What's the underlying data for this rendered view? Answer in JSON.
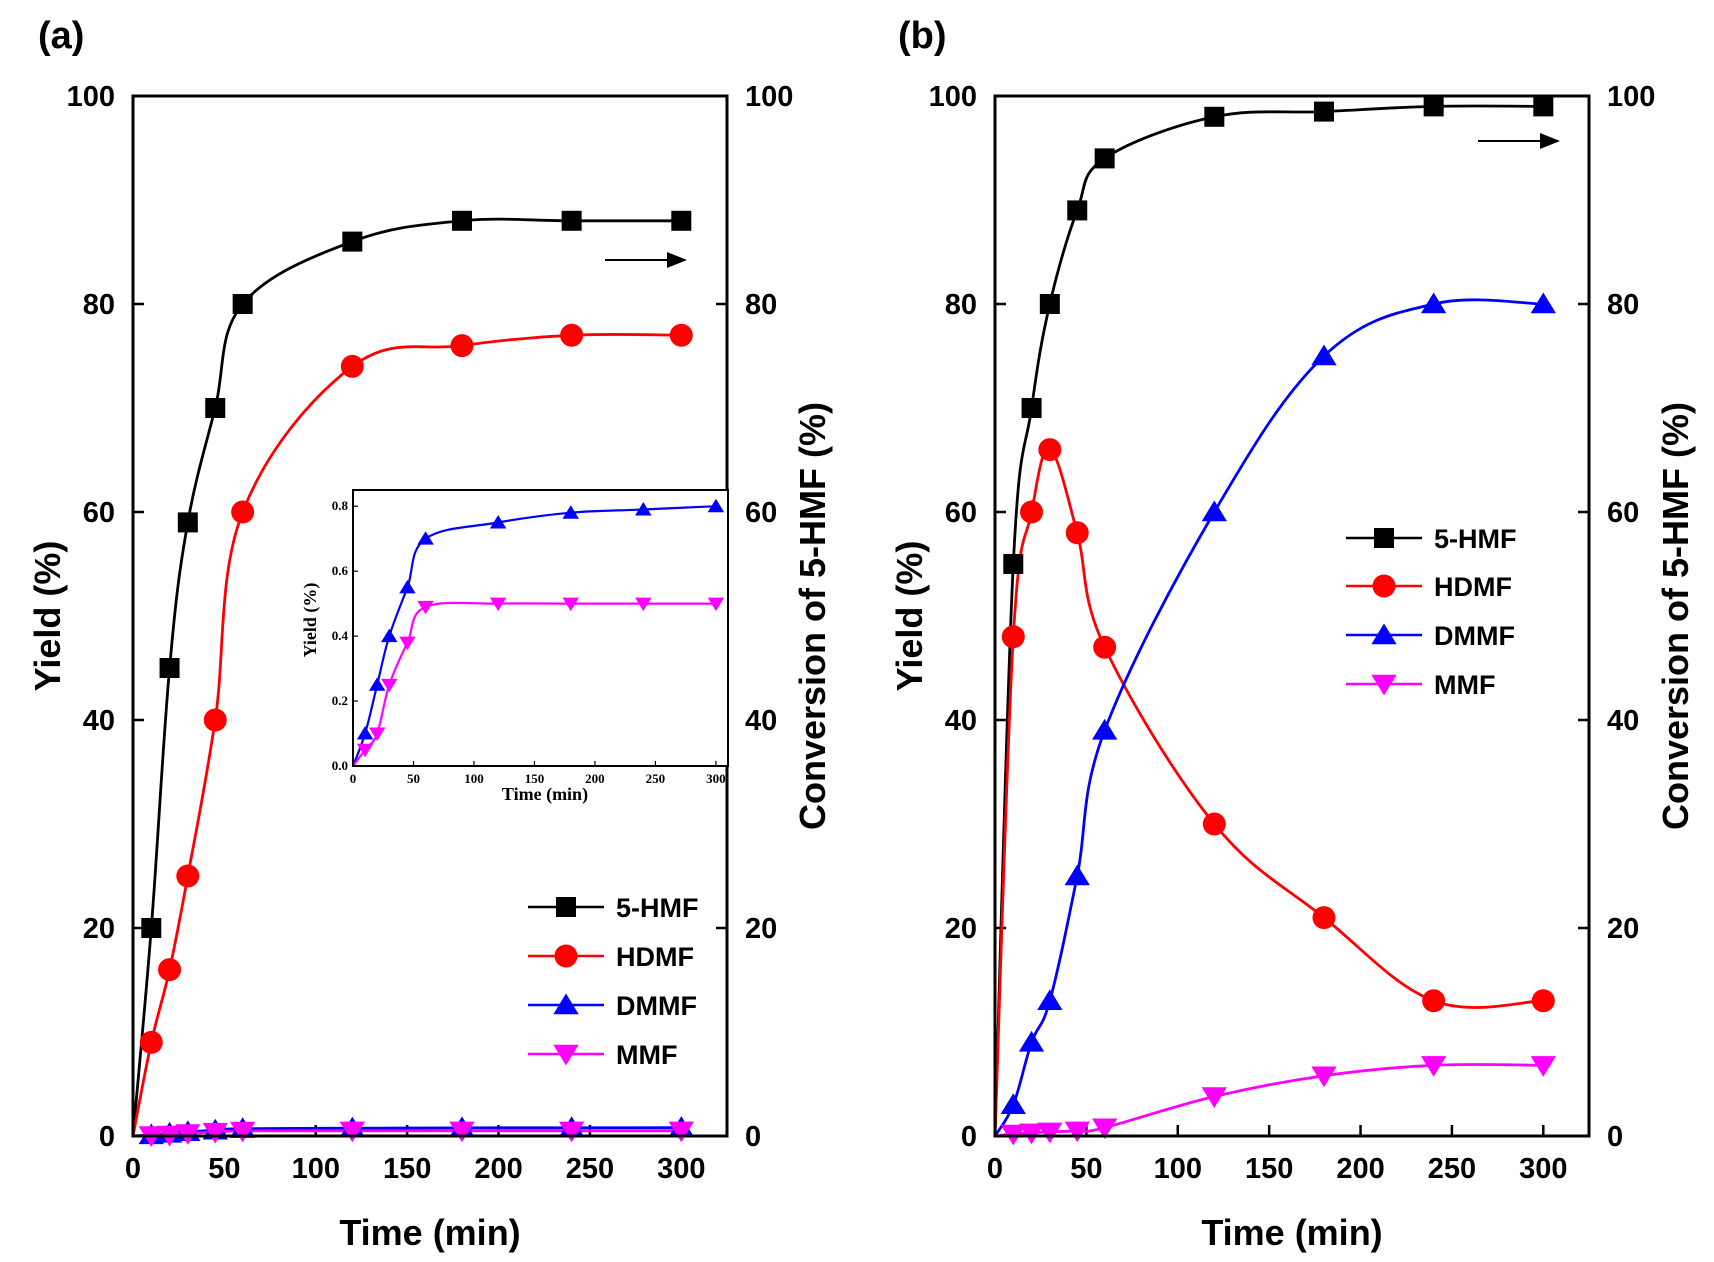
{
  "colors": {
    "5-HMF": "#000000",
    "HDMF": "#ff0000",
    "DMMF": "#0000ff",
    "MMF": "#ff00ff"
  },
  "chart_data": [
    {
      "panel": "(a)",
      "type": "line",
      "xlabel": "Time (min)",
      "ylabel": "Yield (%)",
      "y2label": "Conversion of 5-HMF (%)",
      "xlim": [
        0,
        325
      ],
      "ylim": [
        0,
        100
      ],
      "y2lim": [
        0,
        100
      ],
      "xticks": [
        "0",
        "50",
        "100",
        "150",
        "200",
        "250",
        "300"
      ],
      "yticks": [
        "0",
        "20",
        "40",
        "60",
        "80",
        "100"
      ],
      "y2ticks": [
        "0",
        "20",
        "40",
        "60",
        "80",
        "100"
      ],
      "legend_position": "lower-right",
      "arrow_annotation": "points to right axis (5-HMF conversion)",
      "series": [
        {
          "name": "5-HMF",
          "marker": "square",
          "axis": "right",
          "x": [
            10,
            20,
            30,
            45,
            60,
            120,
            180,
            240,
            300
          ],
          "values": [
            20,
            45,
            59,
            70,
            80,
            86,
            88,
            88,
            88
          ]
        },
        {
          "name": "HDMF",
          "marker": "circle",
          "axis": "left",
          "x": [
            10,
            20,
            30,
            45,
            60,
            120,
            180,
            240,
            300
          ],
          "values": [
            9,
            16,
            25,
            40,
            60,
            74,
            76,
            77,
            77
          ]
        },
        {
          "name": "DMMF",
          "marker": "triangle-up",
          "axis": "left",
          "x": [
            10,
            20,
            30,
            45,
            60,
            120,
            180,
            240,
            300
          ],
          "values": [
            0.1,
            0.25,
            0.4,
            0.55,
            0.7,
            0.75,
            0.78,
            0.79,
            0.8
          ]
        },
        {
          "name": "MMF",
          "marker": "triangle-down",
          "axis": "left",
          "x": [
            10,
            20,
            30,
            45,
            60,
            120,
            180,
            240,
            300
          ],
          "values": [
            0.05,
            0.1,
            0.25,
            0.38,
            0.49,
            0.5,
            0.5,
            0.5,
            0.5
          ]
        }
      ],
      "inset": {
        "xlabel": "Time (min)",
        "ylabel": "Yield (%)",
        "xlim": [
          0,
          310
        ],
        "ylim": [
          0,
          0.85
        ],
        "xticks": [
          "0",
          "50",
          "100",
          "150",
          "200",
          "250",
          "300"
        ],
        "yticks": [
          "0.0",
          "0.2",
          "0.4",
          "0.6",
          "0.8"
        ],
        "series": [
          {
            "name": "DMMF",
            "marker": "triangle-up",
            "x": [
              10,
              20,
              30,
              45,
              60,
              120,
              180,
              240,
              300
            ],
            "values": [
              0.1,
              0.25,
              0.4,
              0.55,
              0.7,
              0.75,
              0.78,
              0.79,
              0.8
            ]
          },
          {
            "name": "MMF",
            "marker": "triangle-down",
            "x": [
              10,
              20,
              30,
              45,
              60,
              120,
              180,
              240,
              300
            ],
            "values": [
              0.05,
              0.1,
              0.25,
              0.38,
              0.49,
              0.5,
              0.5,
              0.5,
              0.5
            ]
          }
        ]
      }
    },
    {
      "panel": "(b)",
      "type": "line",
      "xlabel": "Time (min)",
      "ylabel": "Yield (%)",
      "y2label": "Conversion of 5-HMF (%)",
      "xlim": [
        0,
        325
      ],
      "ylim": [
        0,
        100
      ],
      "y2lim": [
        0,
        100
      ],
      "xticks": [
        "0",
        "50",
        "100",
        "150",
        "200",
        "250",
        "300"
      ],
      "yticks": [
        "0",
        "20",
        "40",
        "60",
        "80",
        "100"
      ],
      "y2ticks": [
        "0",
        "20",
        "40",
        "60",
        "80",
        "100"
      ],
      "legend_position": "center-right",
      "arrow_annotation": "points to right axis (5-HMF conversion)",
      "series": [
        {
          "name": "5-HMF",
          "marker": "square",
          "axis": "right",
          "x": [
            10,
            20,
            30,
            45,
            60,
            120,
            180,
            240,
            300
          ],
          "values": [
            55,
            70,
            80,
            89,
            94,
            98,
            98.5,
            99,
            99
          ]
        },
        {
          "name": "HDMF",
          "marker": "circle",
          "axis": "left",
          "x": [
            10,
            20,
            30,
            45,
            60,
            120,
            180,
            240,
            300
          ],
          "values": [
            48,
            60,
            66,
            58,
            47,
            30,
            21,
            13,
            13
          ]
        },
        {
          "name": "DMMF",
          "marker": "triangle-up",
          "axis": "left",
          "x": [
            10,
            20,
            30,
            45,
            60,
            120,
            180,
            240,
            300
          ],
          "values": [
            3,
            9,
            13,
            25,
            39,
            60,
            75,
            80,
            80
          ]
        },
        {
          "name": "MMF",
          "marker": "triangle-down",
          "axis": "left",
          "x": [
            10,
            20,
            30,
            45,
            60,
            120,
            180,
            240,
            300
          ],
          "values": [
            0.2,
            0.3,
            0.4,
            0.5,
            0.8,
            3.8,
            5.8,
            6.8,
            6.8
          ]
        }
      ]
    }
  ]
}
